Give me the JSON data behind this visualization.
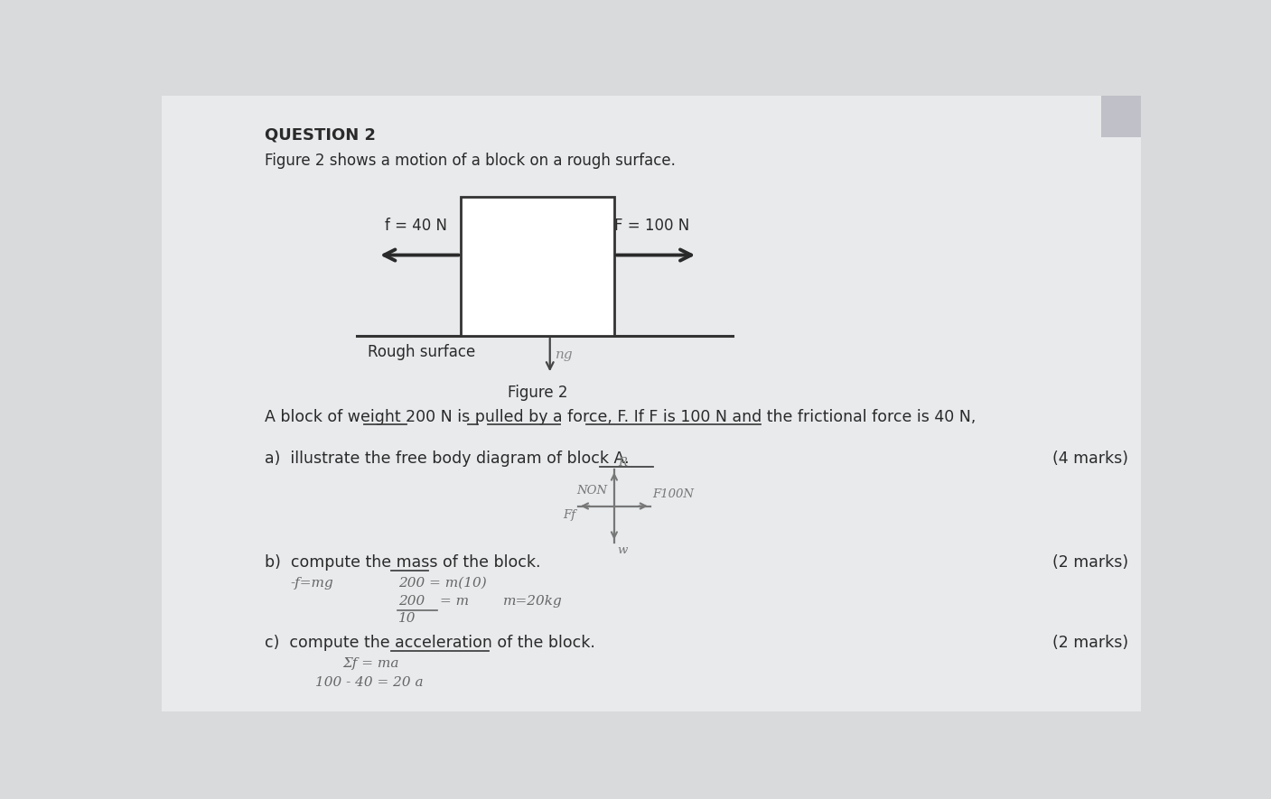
{
  "bg_color": "#d8dadc",
  "paper_color": "#e8eaec",
  "title": "QUESTION 2",
  "subtitle": "Figure 2 shows a motion of a block on a rough surface.",
  "problem_text": "A block of weight 200 N is pulled by a force, F. If F is 100 N and the frictional force is 40 N,",
  "f_label": "f = 40 N",
  "F_label": "F = 100 N",
  "rough_surface": "Rough surface",
  "figure_label": "Figure 2",
  "ng_label": "ng",
  "part_a": "a)  illustrate the free body diagram of block A.",
  "part_a_marks": "(4 marks)",
  "part_b": "b)  compute the mass of the block.",
  "part_b_marks": "(2 marks)",
  "part_c": "c)  compute the acceleration of the block.",
  "part_c_marks": "(2 marks)"
}
